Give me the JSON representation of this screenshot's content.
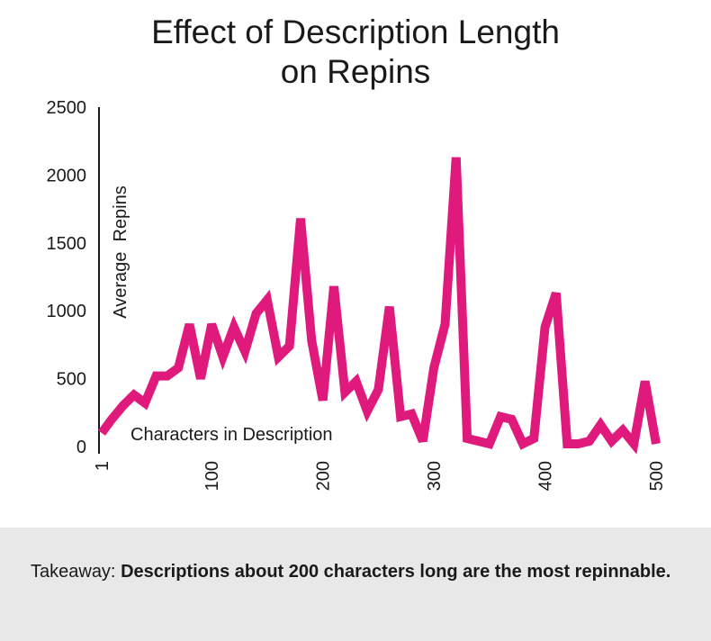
{
  "chart_data": {
    "type": "line",
    "title_lines": [
      "Effect of Description Length",
      "on Repins"
    ],
    "xlabel": "Characters in Description",
    "ylabel": "Average  Repins",
    "xlim": [
      1,
      500
    ],
    "ylim": [
      0,
      2500
    ],
    "x_ticks": [
      "1",
      "100",
      "200",
      "300",
      "400",
      "500"
    ],
    "x_tick_values": [
      1,
      100,
      200,
      300,
      400,
      500
    ],
    "y_ticks": [
      "0",
      "500",
      "1000",
      "1500",
      "2000",
      "2500"
    ],
    "y_tick_values": [
      0,
      500,
      1000,
      1500,
      2000,
      2500
    ],
    "grid": false,
    "colors": {
      "line": "#e0197d",
      "axis": "#1a1a1a"
    },
    "series": [
      {
        "x": [
          1,
          10,
          20,
          30,
          40,
          50,
          60,
          70,
          80,
          90,
          100,
          110,
          120,
          130,
          140,
          150,
          160,
          170,
          180,
          190,
          200,
          210,
          220,
          230,
          240,
          250,
          260,
          270,
          280,
          290,
          300,
          310,
          320,
          330,
          340,
          350,
          360,
          370,
          380,
          390,
          400,
          410,
          420,
          430,
          440,
          450,
          460,
          470,
          480,
          490,
          500
        ],
        "y": [
          100,
          200,
          300,
          380,
          320,
          520,
          520,
          580,
          900,
          500,
          900,
          660,
          880,
          700,
          980,
          1080,
          660,
          740,
          1680,
          780,
          340,
          1180,
          400,
          480,
          260,
          420,
          1030,
          220,
          240,
          40,
          580,
          900,
          2130,
          60,
          40,
          20,
          220,
          200,
          20,
          60,
          880,
          1130,
          20,
          20,
          40,
          160,
          40,
          120,
          20,
          480,
          20
        ]
      }
    ]
  },
  "footer": {
    "takeaway_label": "Takeaway: ",
    "takeaway_text": "Descriptions about 200 characters long are the most repinnable."
  }
}
